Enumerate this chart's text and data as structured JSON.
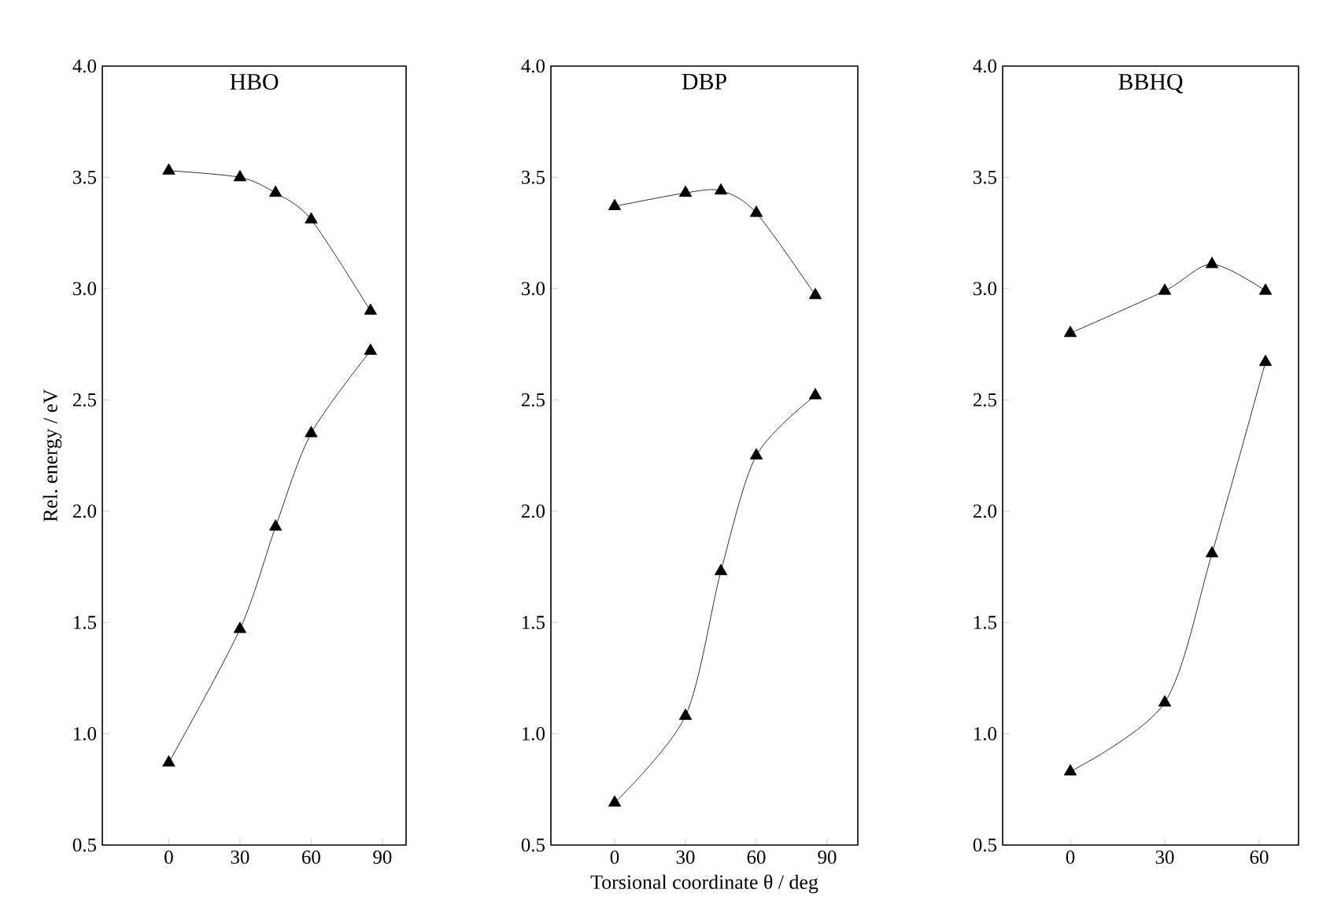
{
  "chart_data": [
    {
      "type": "line",
      "title": "HBO",
      "ylabel": "Rel. energy / eV",
      "marker": "triangle",
      "xlim": [
        -28,
        100
      ],
      "xticks": [
        0,
        30,
        60,
        90
      ],
      "ylim": [
        0.5,
        4.0
      ],
      "yticks": [
        0.5,
        {
          "value": 1,
          "label": "1.0"
        },
        1.5,
        {
          "value": 2,
          "label": "2.0"
        },
        2.5,
        {
          "value": 3,
          "label": "3.0"
        },
        3.5,
        {
          "value": 4,
          "label": "4.0"
        }
      ],
      "series": [
        {
          "color": "#000000",
          "x": [
            0,
            30,
            45,
            60,
            85
          ],
          "values": [
            3.53,
            3.5,
            3.43,
            3.31,
            2.9
          ]
        },
        {
          "color": "#000000",
          "x": [
            0,
            30,
            45,
            60,
            85
          ],
          "values": [
            0.87,
            1.47,
            1.93,
            2.35,
            2.72
          ]
        }
      ]
    },
    {
      "type": "line",
      "title": "DBP",
      "xlabel": "Torsional coordinate θ / deg",
      "marker": "triangle",
      "xlim": [
        -27,
        103
      ],
      "xticks": [
        0,
        30,
        60,
        90
      ],
      "ylim": [
        0.5,
        4.0
      ],
      "yticks": [
        0.5,
        {
          "value": 1,
          "label": "1.0"
        },
        1.5,
        {
          "value": 2,
          "label": "2.0"
        },
        2.5,
        {
          "value": 3,
          "label": "3.0"
        },
        3.5,
        {
          "value": 4,
          "label": "4.0"
        }
      ],
      "series": [
        {
          "color": "#000000",
          "x": [
            0,
            30,
            45,
            60,
            85
          ],
          "values": [
            3.37,
            3.43,
            3.44,
            3.34,
            2.97
          ]
        },
        {
          "color": "#000000",
          "x": [
            0,
            30,
            45,
            60,
            85
          ],
          "values": [
            0.69,
            1.08,
            1.73,
            2.25,
            2.52
          ]
        }
      ]
    },
    {
      "type": "line",
      "title": "BBHQ",
      "marker": "triangle",
      "xlim": [
        -21.5,
        72.5
      ],
      "xticks": [
        0,
        30,
        60
      ],
      "ylim": [
        0.5,
        4.0
      ],
      "yticks": [
        0.5,
        {
          "value": 1,
          "label": "1.0"
        },
        1.5,
        {
          "value": 2,
          "label": "2.0"
        },
        2.5,
        {
          "value": 3,
          "label": "3.0"
        },
        3.5,
        {
          "value": 4,
          "label": "4.0"
        }
      ],
      "series": [
        {
          "color": "#000000",
          "x": [
            0,
            30,
            45,
            62
          ],
          "values": [
            2.8,
            2.99,
            3.11,
            2.99
          ]
        },
        {
          "color": "#000000",
          "x": [
            0,
            30,
            45,
            62
          ],
          "values": [
            0.83,
            1.14,
            1.81,
            2.67
          ]
        }
      ]
    }
  ]
}
